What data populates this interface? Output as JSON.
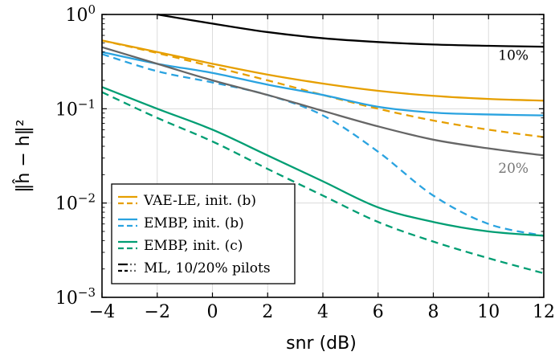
{
  "chart_data": {
    "type": "line",
    "xlabel": "snr (dB)",
    "ylabel": "‖ĥ − h‖²",
    "xlim": [
      -4,
      12
    ],
    "ylim": [
      0.001,
      1
    ],
    "y_scale": "log",
    "grid": true,
    "legend_position": "bottom-left",
    "x_ticks": [
      "−4",
      "−2",
      "0",
      "2",
      "4",
      "6",
      "8",
      "10",
      "12"
    ],
    "x_tick_values": [
      -4,
      -2,
      0,
      2,
      4,
      6,
      8,
      10,
      12
    ],
    "y_ticks": [
      {
        "base": "10",
        "exp": "−3",
        "value": 0.001
      },
      {
        "base": "10",
        "exp": "−2",
        "value": 0.01
      },
      {
        "base": "10",
        "exp": "−1",
        "value": 0.1
      },
      {
        "base": "10",
        "exp": "0",
        "value": 1
      }
    ],
    "series": [
      {
        "key": "vae-solid",
        "color": "#e69f00",
        "dash": "solid",
        "x": [
          -4,
          -2,
          0,
          2,
          4,
          6,
          8,
          10,
          12
        ],
        "y": [
          0.53,
          0.4,
          0.3,
          0.23,
          0.185,
          0.155,
          0.137,
          0.127,
          0.122
        ]
      },
      {
        "key": "vae-dashed",
        "color": "#e69f00",
        "dash": "dashed",
        "x": [
          -4,
          -2,
          0,
          2,
          4,
          6,
          8,
          10,
          12
        ],
        "y": [
          0.53,
          0.39,
          0.28,
          0.2,
          0.14,
          0.1,
          0.075,
          0.06,
          0.05
        ]
      },
      {
        "key": "embp-b-solid",
        "color": "#2aa3e0",
        "dash": "solid",
        "x": [
          -4,
          -2,
          0,
          2,
          4,
          6,
          8,
          10,
          12
        ],
        "y": [
          0.4,
          0.3,
          0.24,
          0.18,
          0.14,
          0.105,
          0.091,
          0.087,
          0.085
        ]
      },
      {
        "key": "embp-b-dashed",
        "color": "#2aa3e0",
        "dash": "dashed",
        "x": [
          -4,
          -2,
          0,
          2,
          4,
          6,
          8,
          10,
          12
        ],
        "y": [
          0.38,
          0.25,
          0.19,
          0.14,
          0.085,
          0.035,
          0.012,
          0.006,
          0.0045
        ]
      },
      {
        "key": "embp-c-solid",
        "color": "#009e73",
        "dash": "solid",
        "x": [
          -4,
          -2,
          0,
          2,
          4,
          6,
          8,
          10,
          12
        ],
        "y": [
          0.17,
          0.1,
          0.06,
          0.032,
          0.017,
          0.009,
          0.0063,
          0.005,
          0.0045
        ]
      },
      {
        "key": "embp-c-dashed",
        "color": "#009e73",
        "dash": "dashed",
        "x": [
          -4,
          -2,
          0,
          2,
          4,
          6,
          8,
          10,
          12
        ],
        "y": [
          0.15,
          0.08,
          0.045,
          0.023,
          0.012,
          0.0063,
          0.0039,
          0.0026,
          0.0018
        ]
      },
      {
        "key": "ml-10",
        "color": "#000000",
        "dash": "solid",
        "x": [
          -2,
          0,
          2,
          4,
          6,
          8,
          10,
          12
        ],
        "y": [
          1.0,
          0.8,
          0.65,
          0.56,
          0.51,
          0.48,
          0.465,
          0.455
        ]
      },
      {
        "key": "ml-20",
        "color": "#666666",
        "dash": "solid",
        "x": [
          -4,
          -2,
          0,
          2,
          4,
          6,
          8,
          10,
          12
        ],
        "y": [
          0.45,
          0.3,
          0.2,
          0.14,
          0.095,
          0.065,
          0.047,
          0.038,
          0.032
        ]
      }
    ],
    "annotations": [
      {
        "text": "10%",
        "x": 10.35,
        "y": 0.33,
        "color": "#000000"
      },
      {
        "text": "20%",
        "x": 10.35,
        "y": 0.021,
        "color": "#777777"
      }
    ],
    "legend": [
      {
        "label": "VAE-LE, init. (b)",
        "color": "#e69f00",
        "style": "solid-dashed"
      },
      {
        "label": "EMBP, init. (b)",
        "color": "#2aa3e0",
        "style": "solid-dashed"
      },
      {
        "label": "EMBP, init. (c)",
        "color": "#009e73",
        "style": "solid-dashed"
      },
      {
        "label": "ML, 10/20% pilots",
        "color": "#000000",
        "style": "ml"
      }
    ]
  }
}
